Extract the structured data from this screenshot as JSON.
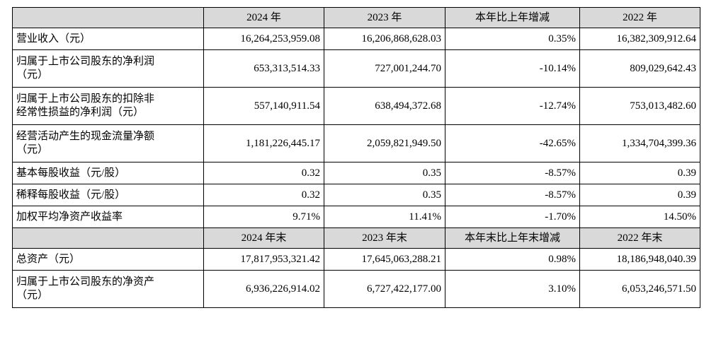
{
  "headers1": [
    "",
    "2024 年",
    "2023 年",
    "本年比上年增减",
    "2022 年"
  ],
  "rows1": [
    {
      "label": [
        "营业收入（元）"
      ],
      "v": [
        "16,264,253,959.08",
        "16,206,868,628.03",
        "0.35%",
        "16,382,309,912.64"
      ]
    },
    {
      "label": [
        "归属于上市公司股东的净利润",
        "（元）"
      ],
      "v": [
        "653,313,514.33",
        "727,001,244.70",
        "-10.14%",
        "809,029,642.43"
      ]
    },
    {
      "label": [
        "归属于上市公司股东的扣除非",
        "经常性损益的净利润（元）"
      ],
      "v": [
        "557,140,911.54",
        "638,494,372.68",
        "-12.74%",
        "753,013,482.60"
      ]
    },
    {
      "label": [
        "经营活动产生的现金流量净额",
        "（元）"
      ],
      "v": [
        "1,181,226,445.17",
        "2,059,821,949.50",
        "-42.65%",
        "1,334,704,399.36"
      ]
    },
    {
      "label": [
        "基本每股收益（元/股）"
      ],
      "v": [
        "0.32",
        "0.35",
        "-8.57%",
        "0.39"
      ]
    },
    {
      "label": [
        "稀释每股收益（元/股）"
      ],
      "v": [
        "0.32",
        "0.35",
        "-8.57%",
        "0.39"
      ]
    },
    {
      "label": [
        "加权平均净资产收益率"
      ],
      "v": [
        "9.71%",
        "11.41%",
        "-1.70%",
        "14.50%"
      ]
    }
  ],
  "headers2": [
    "",
    "2024 年末",
    "2023 年末",
    "本年末比上年末增减",
    "2022 年末"
  ],
  "rows2": [
    {
      "label": [
        "总资产（元）"
      ],
      "v": [
        "17,817,953,321.42",
        "17,645,063,288.21",
        "0.98%",
        "18,186,948,040.39"
      ]
    },
    {
      "label": [
        "归属于上市公司股东的净资产",
        "（元）"
      ],
      "v": [
        "6,936,226,914.02",
        "6,727,422,177.00",
        "3.10%",
        "6,053,246,571.50"
      ]
    }
  ]
}
